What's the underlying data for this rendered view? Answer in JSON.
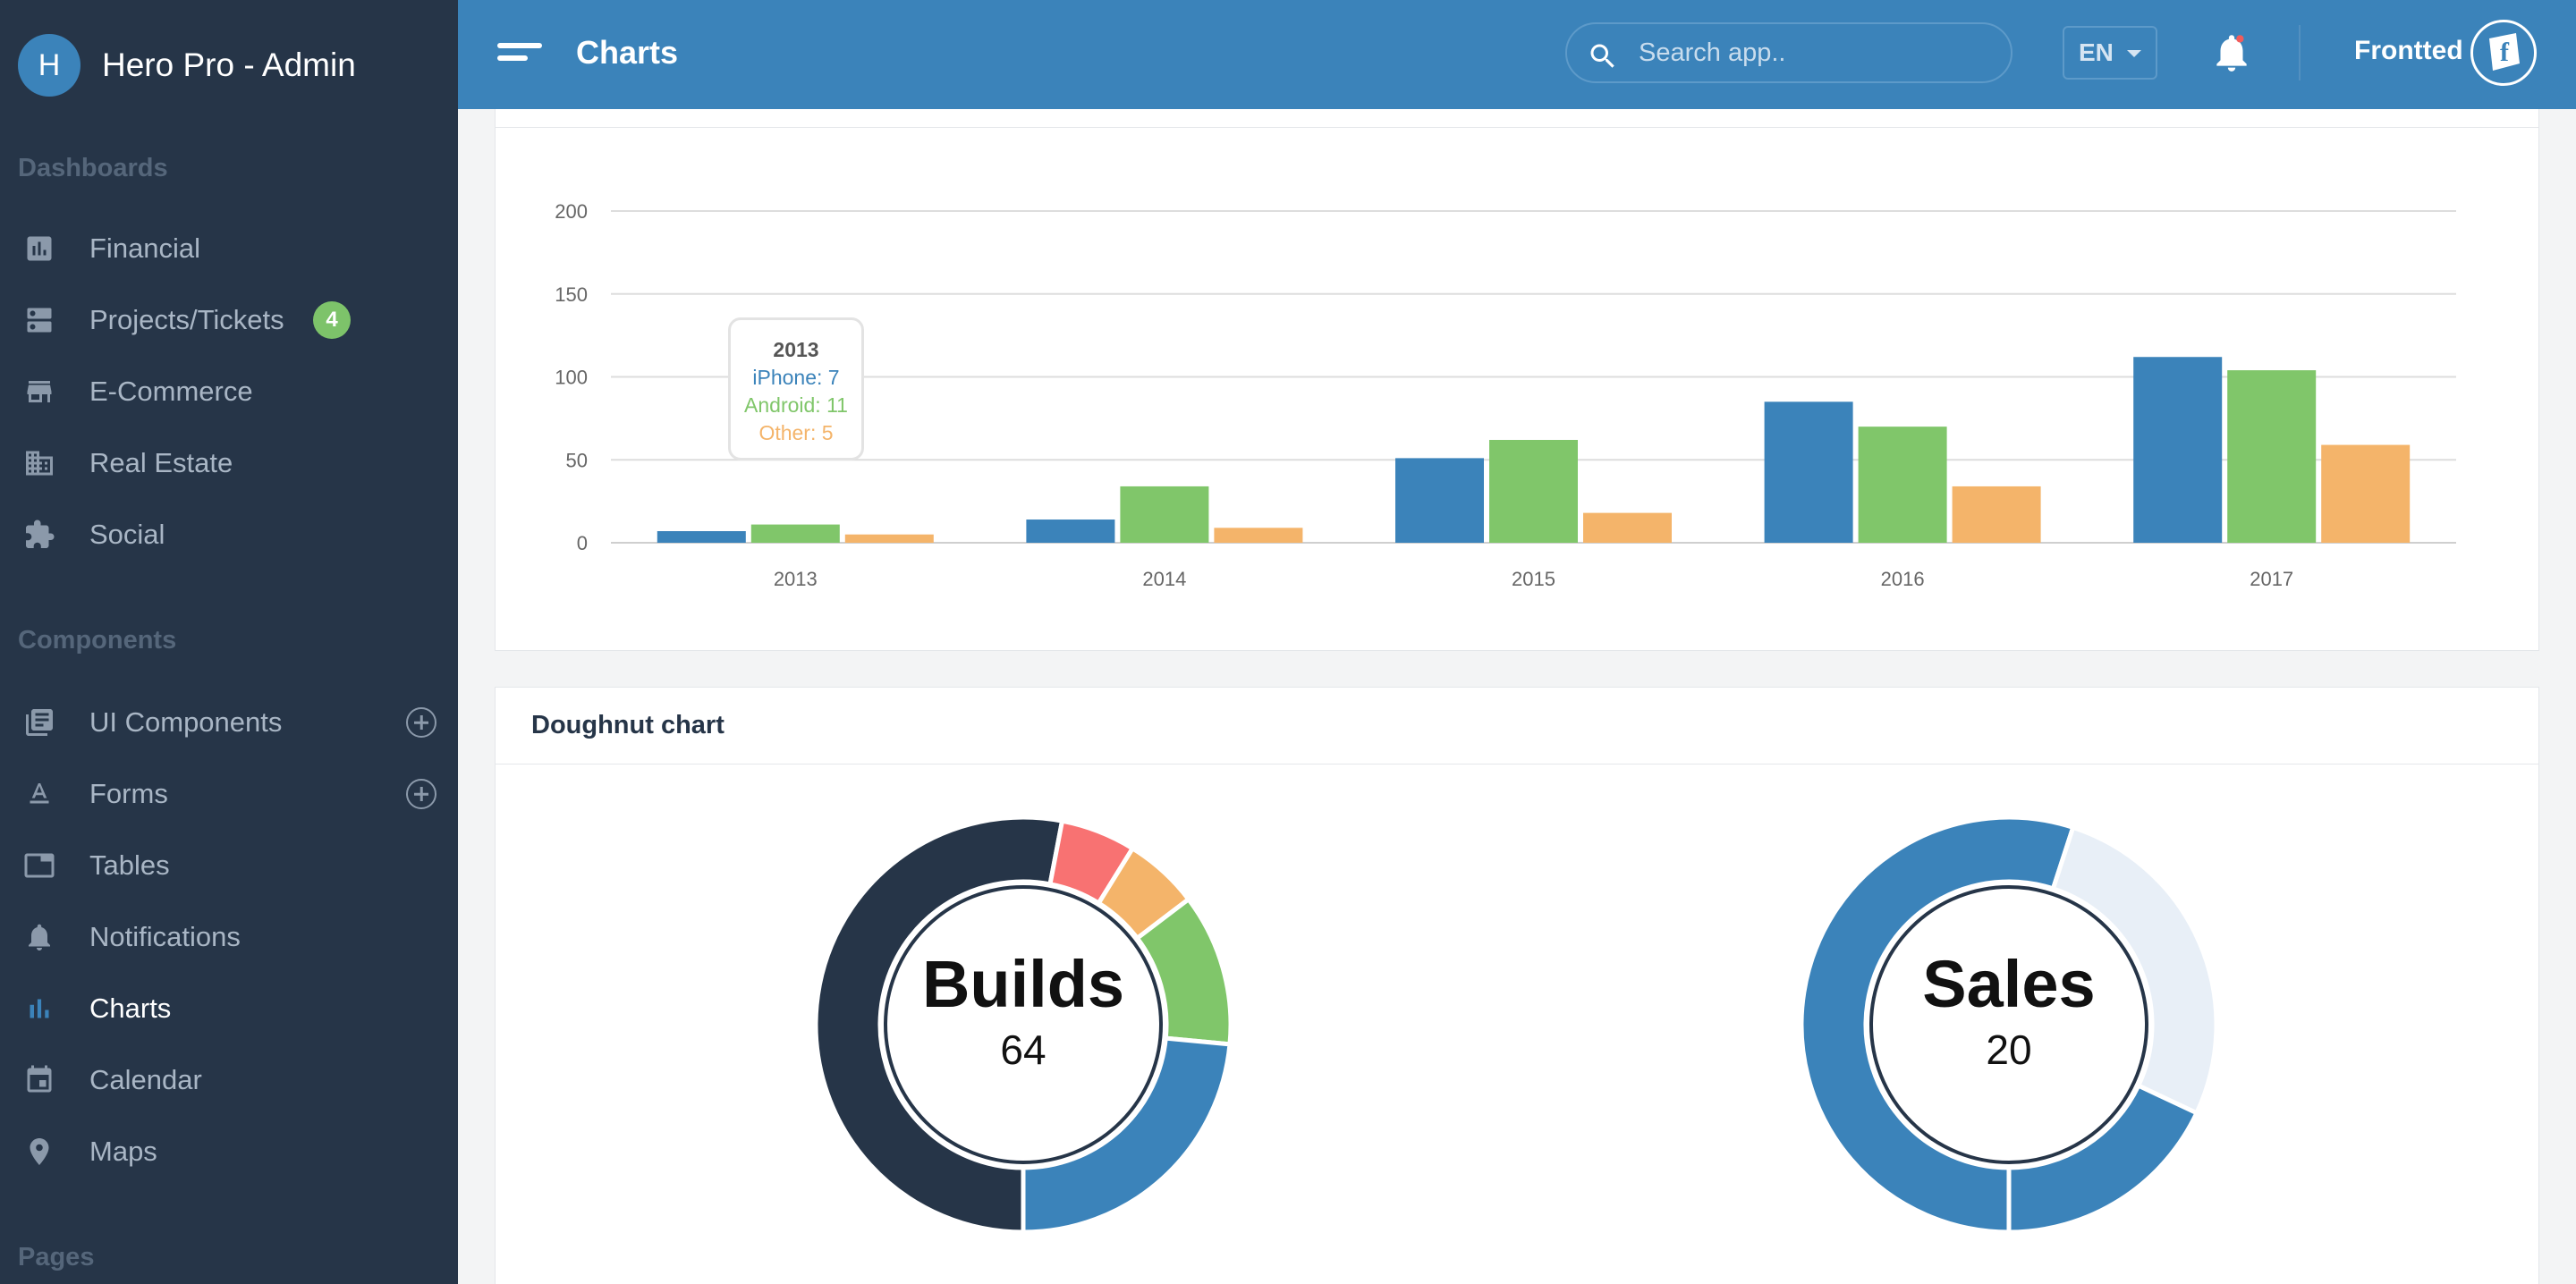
{
  "app": {
    "title": "Hero Pro - Admin",
    "logo_letter": "H"
  },
  "sidebar": {
    "sections": [
      {
        "title": "Dashboards"
      },
      {
        "title": "Components"
      },
      {
        "title": "Pages"
      }
    ],
    "dashboards": [
      {
        "label": "Financial",
        "icon": "bar-chart-icon"
      },
      {
        "label": "Projects/Tickets",
        "icon": "server-icon",
        "badge": "4"
      },
      {
        "label": "E-Commerce",
        "icon": "store-icon"
      },
      {
        "label": "Real Estate",
        "icon": "building-icon"
      },
      {
        "label": "Social",
        "icon": "puzzle-icon"
      }
    ],
    "components": [
      {
        "label": "UI Components",
        "icon": "library-icon",
        "expandable": true
      },
      {
        "label": "Forms",
        "icon": "text-format-icon",
        "expandable": true
      },
      {
        "label": "Tables",
        "icon": "tab-icon"
      },
      {
        "label": "Notifications",
        "icon": "bell-icon"
      },
      {
        "label": "Charts",
        "icon": "bar-chart-icon",
        "active": true
      },
      {
        "label": "Calendar",
        "icon": "calendar-icon"
      },
      {
        "label": "Maps",
        "icon": "map-pin-icon"
      }
    ]
  },
  "header": {
    "title": "Charts",
    "search_placeholder": "Search app..",
    "language": "EN",
    "user_name": "Frontted"
  },
  "bar_panel": {
    "tooltip": {
      "title": "2013",
      "lines": [
        "iPhone: 7",
        "Android: 11",
        "Other: 5"
      ]
    }
  },
  "doughnut_panel": {
    "title": "Doughnut chart",
    "builds": {
      "label": "Builds",
      "value": "64"
    },
    "sales": {
      "label": "Sales",
      "value": "20"
    }
  },
  "colors": {
    "blue": "#3b83ba",
    "green": "#80c66a",
    "orange": "#f4b46a",
    "red": "#f87272",
    "navy": "#263548",
    "light": "#e8eff7"
  },
  "chart_data": [
    {
      "type": "bar",
      "categories": [
        "2013",
        "2014",
        "2015",
        "2016",
        "2017"
      ],
      "series": [
        {
          "name": "iPhone",
          "color": "#3b83ba",
          "values": [
            7,
            14,
            51,
            85,
            112
          ]
        },
        {
          "name": "Android",
          "color": "#80c66a",
          "values": [
            11,
            34,
            62,
            70,
            104
          ]
        },
        {
          "name": "Other",
          "color": "#f4b46a",
          "values": [
            5,
            9,
            18,
            34,
            59
          ]
        }
      ],
      "yticks": [
        "0",
        "50",
        "100",
        "150",
        "200"
      ],
      "ylim": [
        0,
        200
      ],
      "grid": true
    },
    {
      "type": "pie",
      "title": "Builds",
      "slices": [
        {
          "value": 30,
          "color": "#263548"
        },
        {
          "value": 3.3,
          "color": "#f87272"
        },
        {
          "value": 3.3,
          "color": "#f4b46a"
        },
        {
          "value": 6.7,
          "color": "#80c66a"
        },
        {
          "value": 13.3,
          "color": "#3b83ba"
        }
      ]
    },
    {
      "type": "pie",
      "title": "Sales",
      "slices": [
        {
          "value": 55,
          "color": "#3b83ba"
        },
        {
          "value": 27,
          "color": "#e8eff7"
        },
        {
          "value": 18,
          "color": "#3b83ba"
        }
      ]
    }
  ]
}
